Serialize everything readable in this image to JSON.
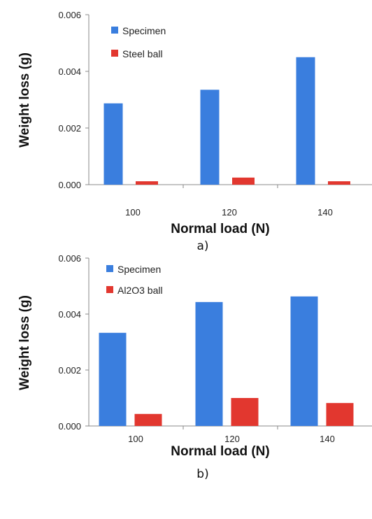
{
  "chart_data": [
    {
      "type": "bar",
      "caption": "a)",
      "categories": [
        "100",
        "120",
        "140"
      ],
      "series": [
        {
          "name": "Specimen",
          "color": "#3a7ede",
          "values": [
            0.00287,
            0.00335,
            0.0045
          ]
        },
        {
          "name": "Steel ball",
          "color": "#e2372f",
          "values": [
            0.00012,
            0.00025,
            0.00012
          ]
        }
      ],
      "xlabel": "Normal load (N)",
      "ylabel": "Weight loss (g)",
      "ylim": [
        0,
        0.006
      ],
      "yticks": [
        "0.000",
        "0.002",
        "0.004",
        "0.006"
      ],
      "grid": false,
      "legend_position": "top-left"
    },
    {
      "type": "bar",
      "caption": "b)",
      "categories": [
        "100",
        "120",
        "140"
      ],
      "series": [
        {
          "name": "Specimen",
          "color": "#3a7ede",
          "values": [
            0.00333,
            0.00443,
            0.00463
          ]
        },
        {
          "name": "Al2O3 ball",
          "color": "#e2372f",
          "values": [
            0.00043,
            0.001,
            0.00082
          ]
        }
      ],
      "xlabel": "Normal load (N)",
      "ylabel": "Weight loss (g)",
      "ylim": [
        0,
        0.006
      ],
      "yticks": [
        "0.000",
        "0.002",
        "0.004",
        "0.006"
      ],
      "grid": false,
      "legend_position": "top-left"
    }
  ]
}
